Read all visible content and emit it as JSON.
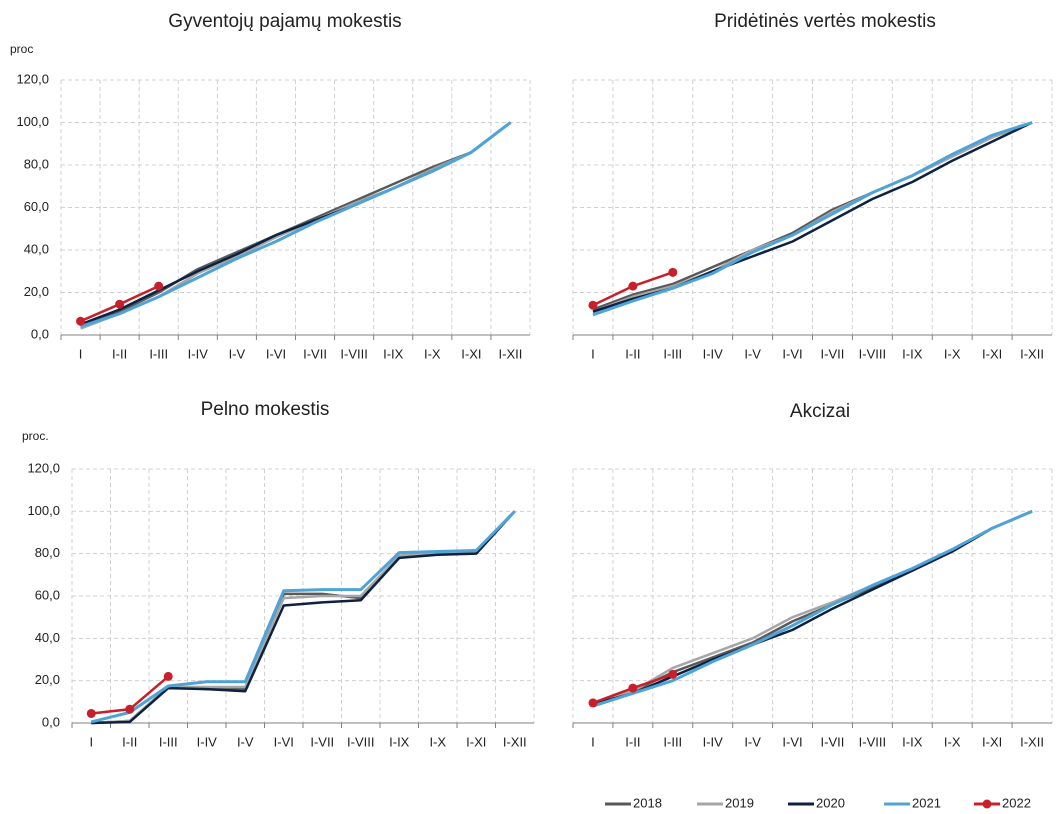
{
  "chart_data": [
    {
      "type": "line",
      "title": "Gyventojų pajamų mokestis",
      "ylabel": "proc",
      "categories": [
        "I",
        "I-II",
        "I-III",
        "I-IV",
        "I-V",
        "I-VI",
        "I-VII",
        "I-VIII",
        "I-IX",
        "I-X",
        "I-XI",
        "I-XII"
      ],
      "ylim": [
        0,
        120
      ],
      "yticks": [
        {
          "value": 0,
          "label": "0,0"
        },
        {
          "value": 20,
          "label": "20,0"
        },
        {
          "value": 40,
          "label": "40,0"
        },
        {
          "value": 60,
          "label": "60,0"
        },
        {
          "value": 80,
          "label": "80,0"
        },
        {
          "value": 100,
          "label": "100,0"
        },
        {
          "value": 120,
          "label": "120,0"
        }
      ],
      "grid": true,
      "series": [
        {
          "name": "2018",
          "color": "#595959",
          "values": [
            4,
            11,
            20,
            31,
            39,
            47,
            55,
            63,
            71,
            79,
            86,
            100
          ]
        },
        {
          "name": "2019",
          "color": "#a6a6a6",
          "values": [
            3,
            10,
            18,
            29,
            37,
            46,
            54,
            62,
            69,
            78,
            86,
            100
          ]
        },
        {
          "name": "2020",
          "color": "#0d2240",
          "values": [
            5,
            12,
            21,
            30,
            38,
            47,
            54,
            61,
            69,
            77,
            86,
            100
          ]
        },
        {
          "name": "2021",
          "color": "#4fa3d6",
          "values": [
            4,
            10,
            18,
            27,
            36,
            44,
            53,
            61,
            69,
            77,
            86,
            100
          ]
        },
        {
          "name": "2022",
          "color": "#c8202a",
          "markers": true,
          "values": [
            6.5,
            14.5,
            23,
            null,
            null,
            null,
            null,
            null,
            null,
            null,
            null,
            null
          ]
        }
      ]
    },
    {
      "type": "line",
      "title": "Pridėtinės vertės mokestis",
      "categories": [
        "I",
        "I-II",
        "I-III",
        "I-IV",
        "I-V",
        "I-VI",
        "I-VII",
        "I-VIII",
        "I-IX",
        "I-X",
        "I-XI",
        "I-XII"
      ],
      "ylim": [
        0,
        120
      ],
      "yticks": [
        0,
        20,
        40,
        60,
        80,
        100,
        120
      ],
      "ytick_labels": false,
      "grid": true,
      "series": [
        {
          "name": "2018",
          "color": "#595959",
          "values": [
            12,
            19,
            24,
            32,
            40,
            48,
            59,
            67,
            75,
            84,
            93,
            100
          ]
        },
        {
          "name": "2019",
          "color": "#a6a6a6",
          "values": [
            11,
            18,
            23,
            30,
            40,
            47,
            58,
            67,
            75,
            84,
            93,
            100
          ]
        },
        {
          "name": "2020",
          "color": "#0d2240",
          "values": [
            11,
            17,
            22,
            30,
            37,
            44,
            54,
            64,
            72,
            82,
            91,
            100
          ]
        },
        {
          "name": "2021",
          "color": "#4fa3d6",
          "values": [
            9.5,
            16,
            22,
            29,
            39,
            47,
            57,
            67,
            75,
            85,
            94,
            100
          ]
        },
        {
          "name": "2022",
          "color": "#c8202a",
          "markers": true,
          "values": [
            14,
            23,
            29.5,
            null,
            null,
            null,
            null,
            null,
            null,
            null,
            null,
            null
          ]
        }
      ]
    },
    {
      "type": "line",
      "title": "Pelno mokestis",
      "ylabel": "proc.",
      "categories": [
        "I",
        "I-II",
        "I-III",
        "I-IV",
        "I-V",
        "I-VI",
        "I-VII",
        "I-VIII",
        "I-IX",
        "I-X",
        "I-XI",
        "I-XII"
      ],
      "ylim": [
        0,
        120
      ],
      "yticks": [
        {
          "value": 0,
          "label": "0,0"
        },
        {
          "value": 20,
          "label": "20,0"
        },
        {
          "value": 40,
          "label": "40,0"
        },
        {
          "value": 60,
          "label": "60,0"
        },
        {
          "value": 80,
          "label": "80,0"
        },
        {
          "value": 100,
          "label": "100,0"
        },
        {
          "value": 120,
          "label": "120,0"
        }
      ],
      "grid": true,
      "series": [
        {
          "name": "2018",
          "color": "#595959",
          "values": [
            0,
            1,
            17,
            16,
            16,
            61,
            61,
            59,
            79,
            80,
            81,
            100
          ]
        },
        {
          "name": "2019",
          "color": "#a6a6a6",
          "values": [
            0,
            1,
            17,
            17,
            17,
            59,
            60,
            60,
            79,
            80,
            81,
            100
          ]
        },
        {
          "name": "2020",
          "color": "#0d2240",
          "values": [
            0,
            0.5,
            16.5,
            16,
            15,
            55.5,
            57,
            58,
            78,
            79.5,
            80,
            100
          ]
        },
        {
          "name": "2021",
          "color": "#4fa3d6",
          "values": [
            0.5,
            5,
            17.5,
            19.5,
            19.5,
            62.5,
            63,
            63,
            80.5,
            81,
            81.5,
            100
          ]
        },
        {
          "name": "2022",
          "color": "#c8202a",
          "markers": true,
          "values": [
            4.5,
            6.5,
            22,
            null,
            null,
            null,
            null,
            null,
            null,
            null,
            null,
            null
          ]
        }
      ]
    },
    {
      "type": "line",
      "title": "Akcizai",
      "categories": [
        "I",
        "I-II",
        "I-III",
        "I-IV",
        "I-V",
        "I-VI",
        "I-VII",
        "I-VIII",
        "I-IX",
        "I-X",
        "I-XI",
        "I-XII"
      ],
      "ylim": [
        0,
        120
      ],
      "yticks": [
        0,
        20,
        40,
        60,
        80,
        100,
        120
      ],
      "ytick_labels": false,
      "grid": true,
      "series": [
        {
          "name": "2018",
          "color": "#595959",
          "values": [
            9,
            15,
            24,
            31,
            38,
            48,
            56,
            64,
            72,
            81,
            92,
            100
          ]
        },
        {
          "name": "2019",
          "color": "#a6a6a6",
          "values": [
            9,
            15,
            26,
            33,
            40,
            50,
            57,
            65,
            73,
            82,
            92,
            100
          ]
        },
        {
          "name": "2020",
          "color": "#0d2240",
          "values": [
            9,
            14,
            22,
            30,
            37,
            44,
            54,
            63,
            72,
            81,
            92,
            100
          ]
        },
        {
          "name": "2021",
          "color": "#4fa3d6",
          "values": [
            8,
            14,
            20,
            29,
            37,
            46,
            56,
            65,
            73,
            82,
            92,
            100
          ]
        },
        {
          "name": "2022",
          "color": "#c8202a",
          "markers": true,
          "values": [
            9.5,
            16.5,
            23,
            null,
            null,
            null,
            null,
            null,
            null,
            null,
            null,
            null
          ]
        }
      ]
    }
  ]
}
